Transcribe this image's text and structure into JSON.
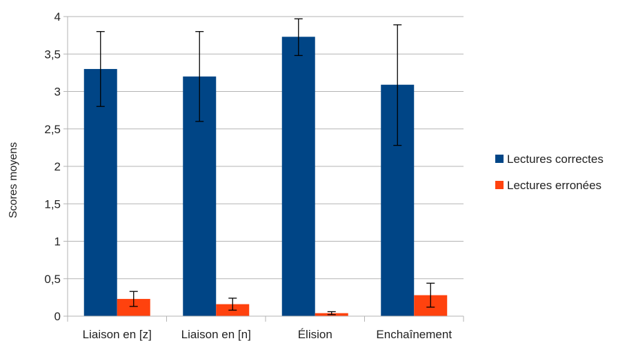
{
  "chart_data": {
    "type": "bar",
    "title": "",
    "xlabel": "",
    "ylabel": "Scores moyens",
    "ylim": [
      0,
      4
    ],
    "ytick_step": 0.5,
    "ytick_labels": [
      "0",
      "0,5",
      "1",
      "1,5",
      "2",
      "2,5",
      "3",
      "3,5",
      "4"
    ],
    "grid": true,
    "legend_position": "right",
    "categories": [
      "Liaison en [z]",
      "Liaison en [n]",
      "Élision",
      "Enchaînement"
    ],
    "series": [
      {
        "name": "Lectures correctes",
        "color": "#004586",
        "values": [
          3.3,
          3.2,
          3.73,
          3.09
        ],
        "error_low": [
          2.8,
          2.6,
          3.48,
          2.28
        ],
        "error_high": [
          3.8,
          3.8,
          3.97,
          3.89
        ]
      },
      {
        "name": "Lectures erronées",
        "color": "#ff420e",
        "values": [
          0.23,
          0.16,
          0.04,
          0.28
        ],
        "error_low": [
          0.13,
          0.08,
          0.02,
          0.12
        ],
        "error_high": [
          0.33,
          0.24,
          0.06,
          0.44
        ]
      }
    ]
  }
}
